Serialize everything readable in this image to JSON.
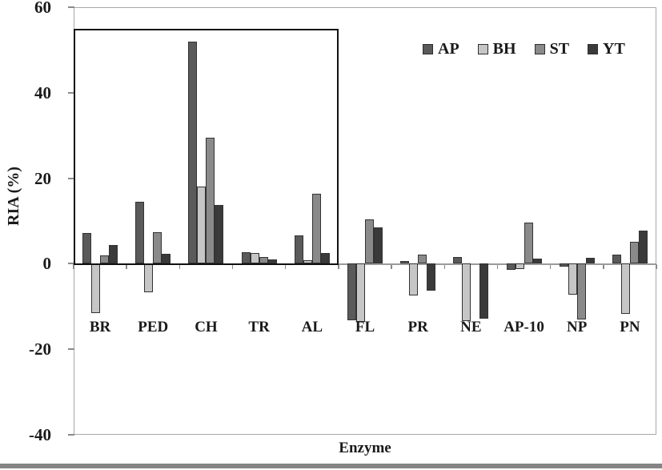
{
  "chart_data": {
    "type": "bar",
    "title": "",
    "xlabel": "Enzyme",
    "ylabel": "RIA (%)",
    "ylim": [
      -40,
      60
    ],
    "yticks": [
      60,
      40,
      20,
      0,
      -20,
      -40
    ],
    "grid": false,
    "legend_position": "top-right-inside",
    "categories": [
      "BR",
      "PED",
      "CH",
      "TR",
      "AL",
      "FL",
      "PR",
      "NE",
      "AP-10",
      "NP",
      "PN"
    ],
    "series": [
      {
        "name": "AP",
        "color": "#5a5a5a",
        "values": [
          7.2,
          14.5,
          52.0,
          2.7,
          6.7,
          -13.3,
          0.6,
          1.5,
          -1.5,
          -0.6,
          2.2
        ]
      },
      {
        "name": "BH",
        "color": "#c6c6c6",
        "values": [
          -11.5,
          -6.7,
          18.0,
          2.5,
          0.9,
          -13.6,
          -7.4,
          -13.4,
          -1.2,
          -7.3,
          -11.7
        ]
      },
      {
        "name": "ST",
        "color": "#8a8a8a",
        "values": [
          2.0,
          7.3,
          29.5,
          1.6,
          16.4,
          10.4,
          2.1,
          0,
          9.7,
          -13.0,
          5.2
        ]
      },
      {
        "name": "YT",
        "color": "#3a3a3a",
        "values": [
          4.3,
          2.3,
          13.7,
          1.0,
          2.5,
          8.5,
          -6.3,
          -12.8,
          1.2,
          1.3,
          7.7
        ]
      }
    ],
    "annotation_box": {
      "from_category": "BR",
      "to_category": "AL",
      "top_value": 55,
      "bottom_value": 0
    }
  }
}
